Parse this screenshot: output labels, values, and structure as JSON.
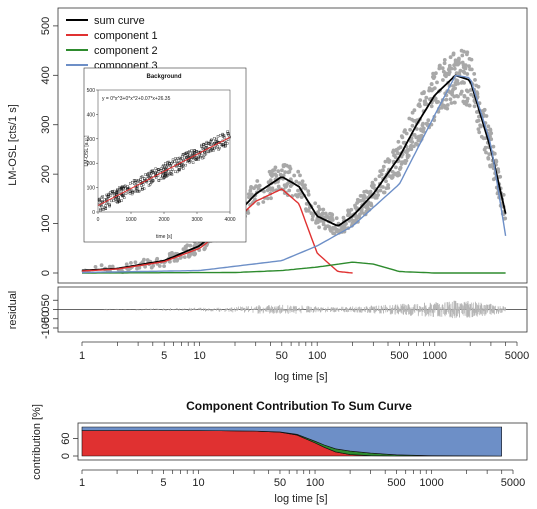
{
  "chart_data": [
    {
      "type": "scatter",
      "ylabel": "LM-OSL [cts/1 s]",
      "xscale": "log",
      "xlim": [
        1,
        5000
      ],
      "ylim": [
        -20,
        520
      ],
      "yticks": [
        0,
        100,
        200,
        300,
        400,
        500
      ],
      "legend_position": "top-left",
      "legend": [
        {
          "name": "sum curve",
          "color": "#000000"
        },
        {
          "name": "component 1",
          "color": "#e03131"
        },
        {
          "name": "component 2",
          "color": "#2e8b2e"
        },
        {
          "name": "component 3",
          "color": "#6d8fc7"
        }
      ],
      "observed_points_color": "#a8a8a8",
      "series": [
        {
          "name": "sum curve",
          "x": [
            1,
            2,
            5,
            10,
            20,
            30,
            50,
            70,
            100,
            150,
            200,
            300,
            500,
            700,
            1000,
            1500,
            2000,
            3000,
            4000
          ],
          "y": [
            5,
            9,
            25,
            55,
            115,
            160,
            195,
            175,
            115,
            95,
            115,
            160,
            235,
            300,
            360,
            400,
            390,
            250,
            120
          ]
        },
        {
          "name": "component 1",
          "x": [
            1,
            2,
            5,
            10,
            20,
            30,
            50,
            70,
            100,
            150,
            200
          ],
          "y": [
            4,
            8,
            23,
            50,
            105,
            145,
            170,
            140,
            40,
            3,
            0
          ]
        },
        {
          "name": "component 2",
          "x": [
            1,
            20,
            50,
            100,
            200,
            300,
            500,
            1000,
            4000
          ],
          "y": [
            0,
            1,
            5,
            12,
            22,
            18,
            3,
            0,
            0
          ]
        },
        {
          "name": "component 3",
          "x": [
            1,
            10,
            50,
            100,
            200,
            500,
            1000,
            1500,
            2000,
            3000,
            4000
          ],
          "y": [
            1,
            5,
            25,
            55,
            95,
            180,
            320,
            400,
            395,
            260,
            75
          ]
        }
      ],
      "axes": [
        {
          "label": "Background",
          "type": "scatter",
          "xlabel": "time [s]",
          "ylabel": "LM-OSL [a.u.]",
          "xlim": [
            0,
            4000
          ],
          "ylim": [
            0,
            500
          ],
          "xticks": [
            0,
            1000,
            2000,
            3000,
            4000
          ],
          "yticks": [
            0,
            100,
            200,
            300,
            400,
            500
          ],
          "equation": "y = 0*x^3+0*x^2+0.07*x+26.35",
          "fit_color": "#e03131"
        },
        {
          "label": "residual",
          "type": "line",
          "ylabel": "residual",
          "ylim": [
            -100,
            100
          ],
          "yticks": [
            -100,
            -50,
            0,
            50
          ],
          "xscale": "log",
          "xlim": [
            1,
            5000
          ]
        },
        {
          "label": "Component Contribution To Sum Curve",
          "type": "area",
          "title": "Component Contribution To Sum Curve",
          "xlabel": "log time [s]",
          "ylabel": "contribution [%]",
          "xscale": "log",
          "xlim": [
            1,
            5000
          ],
          "ylim": [
            0,
            100
          ],
          "yticks": [
            0,
            60
          ],
          "x": [
            1,
            10,
            30,
            50,
            70,
            100,
            120,
            150,
            200,
            300,
            500,
            1000,
            4000
          ],
          "series": [
            {
              "name": "component 1",
              "color": "#e03131",
              "values": [
                88,
                88,
                86,
                82,
                72,
                45,
                30,
                14,
                5,
                1,
                0,
                0,
                0
              ]
            },
            {
              "name": "component 2",
              "color": "#2e8b2e",
              "values": [
                0,
                0,
                0,
                1,
                3,
                6,
                8,
                11,
                12,
                9,
                4,
                1,
                0
              ]
            },
            {
              "name": "component 3",
              "color": "#6d8fc7",
              "values": [
                12,
                12,
                14,
                17,
                25,
                49,
                62,
                75,
                83,
                90,
                96,
                99,
                100
              ]
            }
          ]
        }
      ],
      "xticks": [
        1,
        5,
        10,
        50,
        100,
        500,
        1000,
        5000
      ],
      "xlabel": "log time [s]"
    }
  ]
}
